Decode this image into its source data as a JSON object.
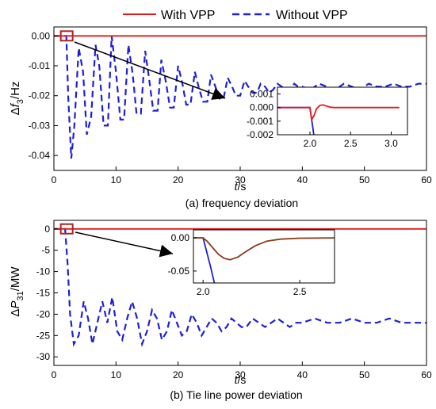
{
  "legend": {
    "items": [
      {
        "label": "With VPP",
        "color": "#e41a1c",
        "style": "solid"
      },
      {
        "label": "Without VPP",
        "color": "#1f1fd6",
        "style": "dashed"
      }
    ],
    "placement": "top-center"
  },
  "chart_data": [
    {
      "id": "freq",
      "type": "line",
      "caption": "(a) frequency deviation",
      "ylabel_main": "Δ",
      "ylabel_var": "f",
      "ylabel_sub": "3",
      "ylabel_unit": "/Hz",
      "xlabel_var": "t",
      "xlabel_unit": "/s",
      "xlim": [
        0,
        60
      ],
      "ylim": [
        -0.045,
        0.003
      ],
      "xticks": [
        "0",
        "10",
        "20",
        "30",
        "40",
        "50",
        "60"
      ],
      "xtick_values": [
        0,
        10,
        20,
        30,
        40,
        50,
        60
      ],
      "yticks": [
        "0.00",
        "-0.01",
        "-0.02",
        "-0.03",
        "-0.04"
      ],
      "ytick_values": [
        0,
        -0.01,
        -0.02,
        -0.03,
        -0.04
      ],
      "grid": false,
      "series": [
        {
          "name": "With VPP",
          "x": [
            0,
            60
          ],
          "y": [
            0,
            0
          ]
        },
        {
          "name": "Without VPP",
          "x": [
            0,
            1.5,
            2.0,
            2.3,
            2.8,
            3.3,
            4.0,
            4.7,
            5.3,
            6.0,
            6.7,
            7.3,
            8.0,
            8.7,
            9.3,
            10.0,
            10.7,
            11.3,
            12.0,
            12.7,
            13.3,
            14.0,
            14.7,
            15.3,
            16.0,
            16.7,
            17.3,
            18.0,
            18.7,
            19.3,
            20.0,
            20.7,
            21.3,
            22.0,
            22.7,
            23.3,
            24.0,
            24.7,
            25.3,
            26.0,
            26.7,
            27.3,
            28.0,
            28.7,
            29.3,
            30.0,
            30.7,
            31.3,
            32.0,
            32.7,
            33.3,
            34.0,
            34.7,
            35.3,
            36.0,
            36.7,
            37.3,
            38.0,
            38.7,
            39.3,
            40.0,
            41.3,
            42.7,
            44.0,
            45.3,
            46.7,
            48.0,
            49.3,
            50.7,
            52.0,
            53.3,
            54.7,
            56.0,
            57.3,
            58.7,
            60.0
          ],
          "y": [
            0,
            0,
            0,
            -0.02,
            -0.041,
            -0.03,
            -0.004,
            -0.012,
            -0.033,
            -0.027,
            -0.003,
            -0.01,
            -0.03,
            -0.03,
            0.0,
            -0.012,
            -0.028,
            -0.028,
            -0.003,
            -0.013,
            -0.026,
            -0.026,
            -0.005,
            -0.014,
            -0.025,
            -0.025,
            -0.008,
            -0.015,
            -0.024,
            -0.024,
            -0.01,
            -0.016,
            -0.023,
            -0.023,
            -0.012,
            -0.017,
            -0.022,
            -0.022,
            -0.013,
            -0.017,
            -0.021,
            -0.021,
            -0.014,
            -0.017,
            -0.02,
            -0.02,
            -0.015,
            -0.017,
            -0.019,
            -0.019,
            -0.016,
            -0.017,
            -0.019,
            -0.018,
            -0.016,
            -0.017,
            -0.018,
            -0.018,
            -0.016,
            -0.017,
            -0.017,
            -0.018,
            -0.016,
            -0.017,
            -0.018,
            -0.016,
            -0.017,
            -0.018,
            -0.016,
            -0.017,
            -0.017,
            -0.016,
            -0.017,
            -0.017,
            -0.016,
            -0.016
          ]
        }
      ],
      "inset": {
        "xlim": [
          1.6,
          3.2
        ],
        "ylim": [
          -0.002,
          0.0015
        ],
        "xticks": [
          "2.0",
          "2.5",
          "3.0"
        ],
        "xtick_values": [
          2.0,
          2.5,
          3.0
        ],
        "yticks": [
          "0.001",
          "0.000",
          "-0.001",
          "-0.002"
        ],
        "ytick_values": [
          0.001,
          0.0,
          -0.001,
          -0.002
        ],
        "series": [
          {
            "name": "With VPP",
            "x": [
              1.6,
              2.0,
              2.02,
              2.05,
              2.08,
              2.12,
              2.16,
              2.2,
              2.25,
              2.3,
              2.4,
              3.1
            ],
            "y": [
              0,
              0,
              -0.0009,
              -0.0006,
              -0.0001,
              0.00015,
              0.0002,
              0.00012,
              3e-05,
              0.0,
              0.0,
              0.0
            ]
          },
          {
            "name": "Without VPP",
            "x": [
              1.6,
              2.0,
              2.05
            ],
            "y": [
              0,
              0,
              -0.0021
            ]
          }
        ]
      }
    },
    {
      "id": "tie",
      "type": "line",
      "caption": "(b) Tie line power deviation",
      "ylabel_main": "Δ",
      "ylabel_var": "P",
      "ylabel_sub": "31",
      "ylabel_unit": "/MW",
      "xlabel_var": "t",
      "xlabel_unit": "/s",
      "xlim": [
        0,
        60
      ],
      "ylim": [
        -32,
        2
      ],
      "xticks": [
        "0",
        "10",
        "20",
        "30",
        "40",
        "50",
        "60"
      ],
      "xtick_values": [
        0,
        10,
        20,
        30,
        40,
        50,
        60
      ],
      "yticks": [
        "0",
        "-5",
        "-10",
        "-15",
        "-20",
        "-25",
        "-30"
      ],
      "ytick_values": [
        0,
        -5,
        -10,
        -15,
        -20,
        -25,
        -30
      ],
      "grid": false,
      "series": [
        {
          "name": "With VPP",
          "x": [
            0,
            60
          ],
          "y": [
            0,
            0
          ]
        },
        {
          "name": "Without VPP",
          "x": [
            0,
            1.8,
            2.2,
            2.6,
            3.2,
            4.0,
            4.8,
            5.5,
            6.2,
            7.0,
            7.8,
            8.6,
            9.4,
            10.2,
            11.0,
            11.8,
            12.6,
            13.4,
            14.2,
            15.0,
            15.8,
            16.6,
            17.4,
            18.2,
            19.0,
            19.8,
            20.6,
            21.4,
            22.2,
            23.0,
            23.8,
            24.6,
            25.4,
            26.2,
            27.0,
            27.8,
            28.6,
            29.4,
            30.2,
            31.0,
            32.0,
            33.0,
            34.0,
            35.0,
            36.0,
            37.0,
            38.0,
            39.0,
            40.0,
            42.0,
            44.0,
            46.0,
            48.0,
            50.0,
            52.0,
            54.0,
            56.0,
            58.0,
            60.0
          ],
          "y": [
            0,
            0,
            -8,
            -20,
            -27,
            -25,
            -17,
            -21,
            -27,
            -22,
            -17,
            -22,
            -16,
            -24,
            -26,
            -21,
            -17,
            -21,
            -27,
            -24,
            -19,
            -21,
            -26,
            -24,
            -19,
            -22,
            -25,
            -24,
            -20,
            -22,
            -25,
            -23,
            -21,
            -22,
            -24,
            -23,
            -21,
            -22,
            -23,
            -23,
            -21,
            -22,
            -23,
            -22,
            -21,
            -22,
            -23,
            -22,
            -22,
            -21,
            -22,
            -22,
            -21,
            -22,
            -22,
            -21,
            -22,
            -22,
            -22
          ]
        }
      ],
      "inset": {
        "xlim": [
          1.95,
          2.68
        ],
        "ylim": [
          -0.068,
          0.012
        ],
        "xticks": [
          "2.0",
          "2.5"
        ],
        "xtick_values": [
          2.0,
          2.5
        ],
        "yticks": [
          "0.00",
          "-0.05"
        ],
        "ytick_values": [
          0.0,
          -0.05
        ],
        "series": [
          {
            "name": "With VPP",
            "x": [
              1.95,
              2.0,
              2.02,
              2.05,
              2.08,
              2.11,
              2.14,
              2.18,
              2.22,
              2.27,
              2.33,
              2.4,
              2.5,
              2.68
            ],
            "y": [
              0,
              0,
              -0.005,
              -0.015,
              -0.025,
              -0.031,
              -0.033,
              -0.029,
              -0.021,
              -0.012,
              -0.005,
              -0.002,
              -0.0005,
              0
            ]
          },
          {
            "name": "Without VPP",
            "x": [
              1.95,
              2.0,
              2.04,
              2.06
            ],
            "y": [
              0,
              0,
              -0.045,
              -0.07
            ]
          }
        ]
      }
    }
  ]
}
